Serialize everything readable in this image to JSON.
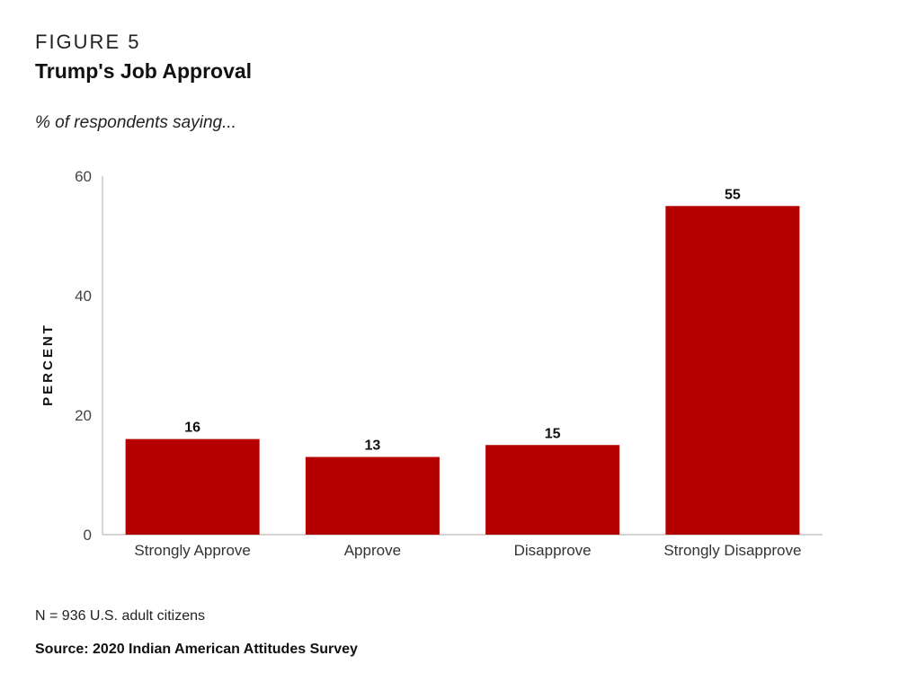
{
  "figure": {
    "label": "FIGURE 5",
    "title": "Trump's Job Approval",
    "subtitle": "% of respondents saying..."
  },
  "chart_data": {
    "type": "bar",
    "categories": [
      "Strongly Approve",
      "Approve",
      "Disapprove",
      "Strongly Disapprove"
    ],
    "values": [
      16,
      13,
      15,
      55
    ],
    "data_labels": [
      "16",
      "13",
      "15",
      "55"
    ],
    "ylabel": "PERCENT",
    "xlabel": "",
    "ylim": [
      0,
      60
    ],
    "yticks": [
      0,
      20,
      40,
      60
    ],
    "grid": false,
    "legend": "none",
    "bar_color": "#b50000"
  },
  "footer": {
    "note": "N = 936 U.S. adult citizens",
    "source": "Source: 2020 Indian American Attitudes Survey"
  }
}
